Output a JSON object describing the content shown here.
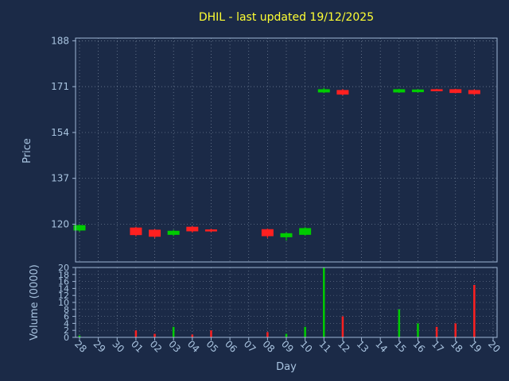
{
  "title": "DHIL - last updated 19/12/2025",
  "colors": {
    "background": "#1b2a47",
    "title": "#ffff33",
    "axis_text": "#a9c4e0",
    "grid": "#c3d3e3",
    "spine": "#9fb6d4",
    "up": "#00cc00",
    "down": "#ff2020"
  },
  "chart_data": {
    "type": "candlestick",
    "title": "DHIL - last updated 19/12/2025",
    "xlabel": "Day",
    "price_ylabel": "Price",
    "volume_ylabel": "Volume (0000)",
    "price_ticks": [
      188,
      171,
      154,
      137,
      120
    ],
    "price_ylim": [
      106,
      189
    ],
    "volume_ticks": [
      20,
      18,
      16,
      14,
      12,
      10,
      8,
      6,
      4,
      2,
      0
    ],
    "volume_ylim": [
      0,
      20
    ],
    "grid": "dotted",
    "legend": "none",
    "days": [
      "28",
      "29",
      "30",
      "01",
      "02",
      "03",
      "04",
      "05",
      "06",
      "07",
      "08",
      "09",
      "10",
      "11",
      "12",
      "13",
      "14",
      "15",
      "16",
      "17",
      "18",
      "19",
      "20"
    ],
    "ohlc": [
      [
        117.8,
        119.8,
        117.2,
        119.5
      ],
      null,
      null,
      [
        118.6,
        119.0,
        115.5,
        116.1
      ],
      [
        117.8,
        118.2,
        114.8,
        115.5
      ],
      [
        116.2,
        117.9,
        115.6,
        117.4
      ],
      [
        118.9,
        119.3,
        116.9,
        117.5
      ],
      [
        117.9,
        118.3,
        117.0,
        117.5
      ],
      null,
      null,
      [
        118.0,
        118.4,
        114.9,
        115.7
      ],
      [
        115.3,
        117.0,
        113.9,
        116.5
      ],
      [
        116.2,
        118.9,
        115.7,
        118.4
      ],
      [
        169.0,
        170.6,
        168.6,
        169.9
      ],
      [
        169.6,
        170.1,
        167.8,
        168.2
      ],
      null,
      null,
      [
        169.0,
        170.2,
        168.7,
        169.9
      ],
      [
        169.1,
        170.0,
        168.8,
        169.8
      ],
      [
        169.9,
        170.2,
        169.3,
        169.6
      ],
      [
        169.9,
        170.2,
        168.5,
        168.8
      ],
      [
        169.6,
        170.0,
        167.9,
        168.4
      ],
      null
    ],
    "volume": [
      0.5,
      0,
      0,
      2,
      1,
      3,
      0.8,
      2,
      0,
      0,
      1.5,
      1,
      3,
      20,
      6,
      0,
      0,
      8,
      4,
      3,
      4,
      15,
      0
    ]
  }
}
